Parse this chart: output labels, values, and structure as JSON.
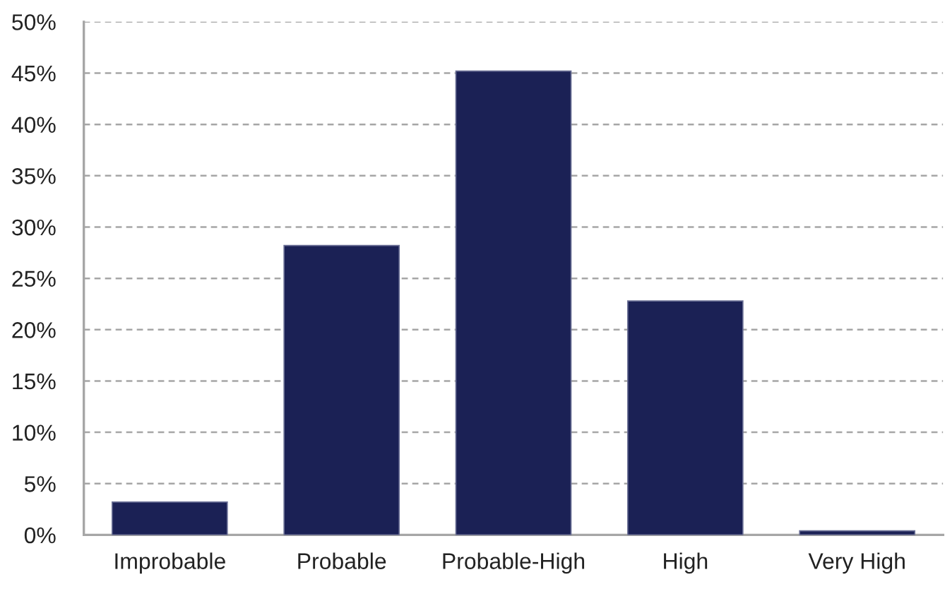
{
  "chart_data": {
    "type": "bar",
    "categories": [
      "Improbable",
      "Probable",
      "Probable-High",
      "High",
      "Very High"
    ],
    "values": [
      3.2,
      28.2,
      45.2,
      22.8,
      0.4
    ],
    "color": "#1b2155",
    "ylim": [
      0,
      50
    ],
    "yticks": [
      {
        "value": 0,
        "label": "0%"
      },
      {
        "value": 5,
        "label": "5%"
      },
      {
        "value": 10,
        "label": "10%"
      },
      {
        "value": 15,
        "label": "15%"
      },
      {
        "value": 20,
        "label": "20%"
      },
      {
        "value": 25,
        "label": "25%"
      },
      {
        "value": 30,
        "label": "30%"
      },
      {
        "value": 35,
        "label": "35%"
      },
      {
        "value": 40,
        "label": "40%"
      },
      {
        "value": 45,
        "label": "45%"
      },
      {
        "value": 50,
        "label": "50%"
      }
    ],
    "grid": "y",
    "legend": false
  }
}
